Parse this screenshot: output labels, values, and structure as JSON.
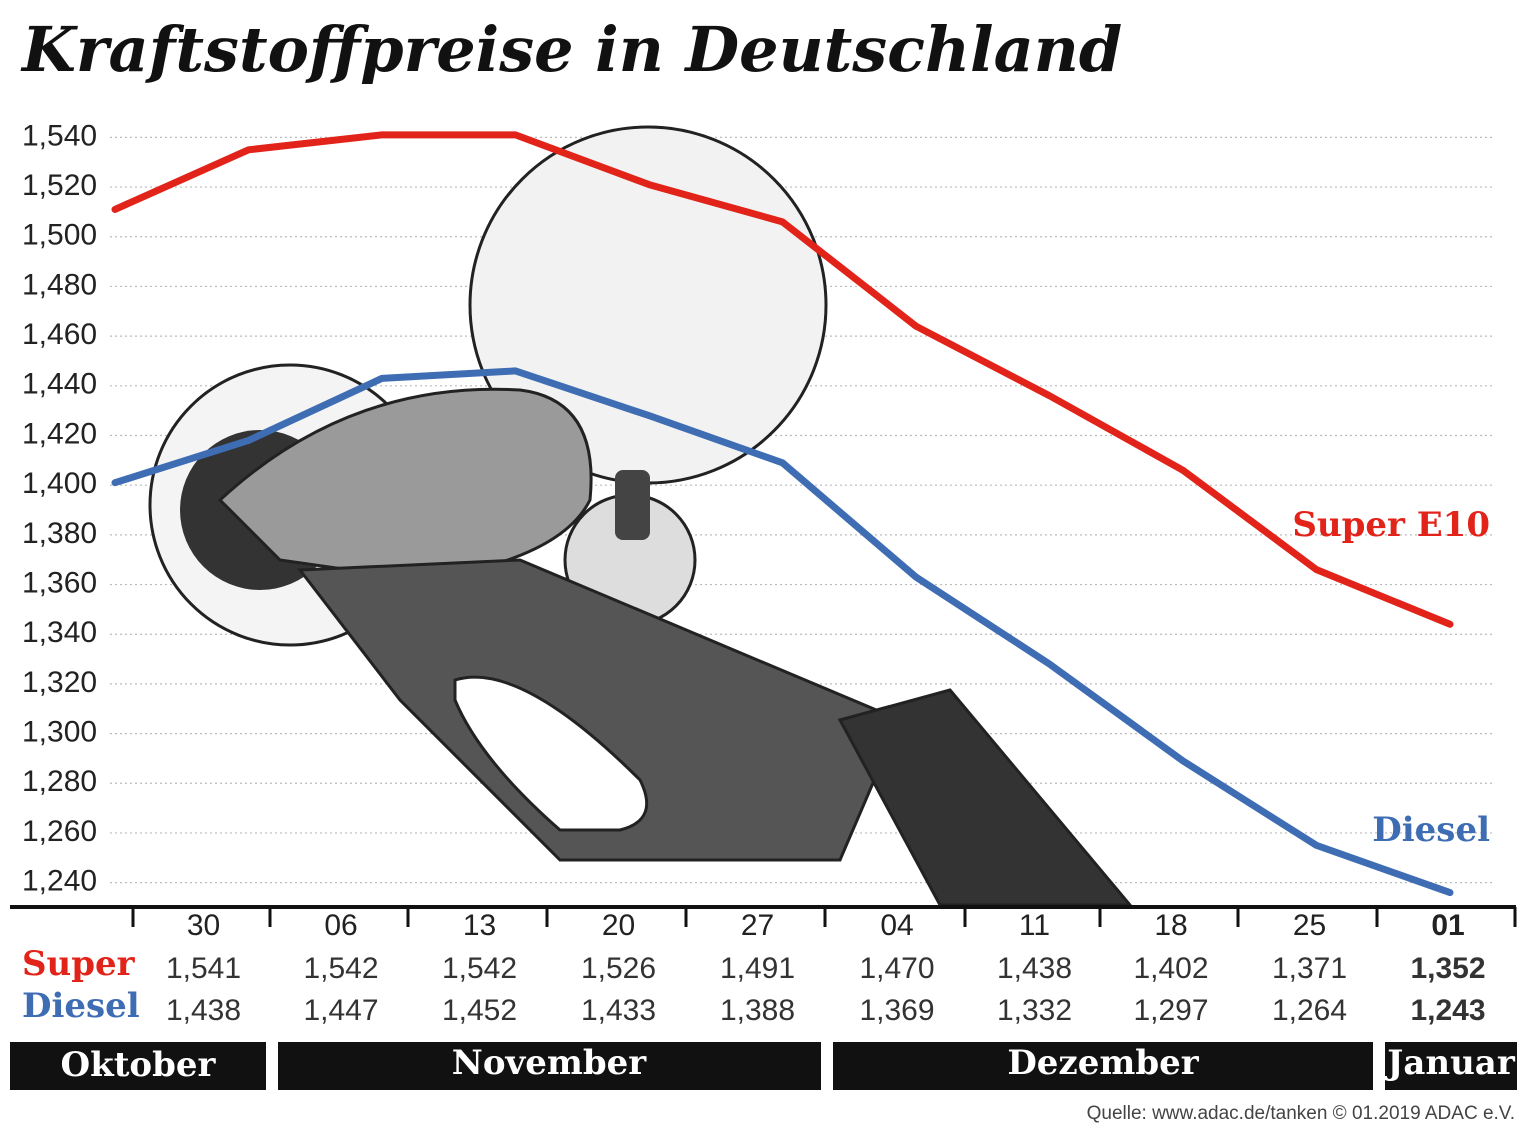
{
  "chart_data": {
    "type": "line",
    "title": "Kraftstoffpreise in Deutschland",
    "categories": [
      null,
      "30",
      "06",
      "13",
      "20",
      "27",
      "04",
      "11",
      "18",
      "25",
      "01"
    ],
    "series": [
      {
        "name": "Super E10",
        "color": "#e2231a",
        "values": [
          1.511,
          1.535,
          1.541,
          1.541,
          1.521,
          1.506,
          1.464,
          1.436,
          1.406,
          1.366,
          1.344
        ]
      },
      {
        "name": "Diesel",
        "color": "#3f6db3",
        "values": [
          1.401,
          1.418,
          1.443,
          1.446,
          1.428,
          1.409,
          1.363,
          1.328,
          1.289,
          1.255,
          1.236
        ]
      }
    ],
    "ylim": [
      1.231,
      1.547
    ],
    "yticks": [
      {
        "value": 1.24,
        "label": "1,240"
      },
      {
        "value": 1.26,
        "label": "1,260"
      },
      {
        "value": 1.28,
        "label": "1,280"
      },
      {
        "value": 1.3,
        "label": "1,300"
      },
      {
        "value": 1.32,
        "label": "1,320"
      },
      {
        "value": 1.34,
        "label": "1,340"
      },
      {
        "value": 1.36,
        "label": "1,360"
      },
      {
        "value": 1.38,
        "label": "1,380"
      },
      {
        "value": 1.4,
        "label": "1,400"
      },
      {
        "value": 1.42,
        "label": "1,420"
      },
      {
        "value": 1.44,
        "label": "1,440"
      },
      {
        "value": 1.46,
        "label": "1,460"
      },
      {
        "value": 1.48,
        "label": "1,480"
      },
      {
        "value": 1.5,
        "label": "1,500"
      },
      {
        "value": 1.52,
        "label": "1,520"
      },
      {
        "value": 1.54,
        "label": "1,540"
      }
    ],
    "grid": true,
    "table": {
      "rows": [
        {
          "label": "Super",
          "color": "#e2231a",
          "values": [
            "1,541",
            "1,542",
            "1,542",
            "1,526",
            "1,491",
            "1,470",
            "1,438",
            "1,402",
            "1,371",
            "1,352"
          ]
        },
        {
          "label": "Diesel",
          "color": "#3f6db3",
          "values": [
            "1,438",
            "1,447",
            "1,452",
            "1,433",
            "1,388",
            "1,369",
            "1,332",
            "1,297",
            "1,264",
            "1,243"
          ]
        }
      ]
    },
    "months": [
      "Oktober",
      "November",
      "Dezember",
      "Januar"
    ],
    "source": "Quelle: www.adac.de/tanken   © 01.2019  ADAC e.V."
  }
}
